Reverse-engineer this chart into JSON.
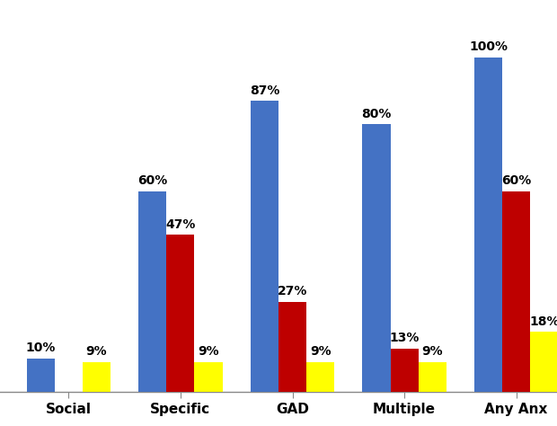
{
  "categories": [
    "Social",
    "Specific",
    "GAD",
    "Multiple",
    "Any Anx"
  ],
  "series": {
    "blue": [
      10,
      60,
      87,
      80,
      100
    ],
    "red": [
      0,
      47,
      27,
      13,
      60
    ],
    "yellow": [
      9,
      9,
      9,
      9,
      18
    ]
  },
  "colors": {
    "blue": "#4472C4",
    "red": "#BE0000",
    "yellow": "#FFFF00"
  },
  "bar_width": 0.25,
  "ylim": [
    0,
    112
  ],
  "label_fontsize": 10,
  "tick_fontsize": 11,
  "background_color": "#FFFFFF",
  "label_fontweight": "bold"
}
